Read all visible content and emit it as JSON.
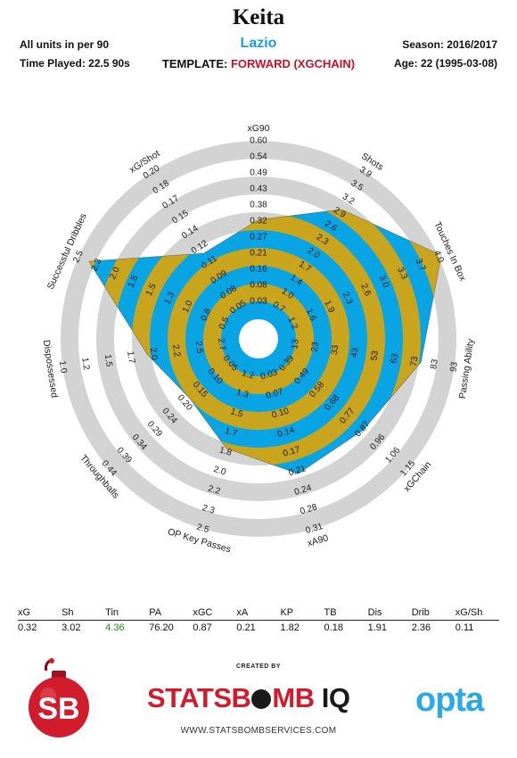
{
  "header": {
    "player": "Keita",
    "team": "Lazio",
    "units": "All units in per 90",
    "time_played": "Time Played: 22.5 90s",
    "season": "Season: 2016/2017",
    "age": "Age: 22 (1995-03-08)",
    "template_label": "TEMPLATE: ",
    "template_value": "FORWARD (XGCHAIN)"
  },
  "colors": {
    "ring_gold": "#c9a51d",
    "ring_blue": "#08a4e4",
    "ring_grey": "#d3d3d3",
    "accent_red": "#c8102e",
    "team_blue": "#1aa0e0"
  },
  "chart_data": {
    "type": "radar",
    "axes": [
      {
        "label": "xG90",
        "ticks": [
          "0.03",
          "0.08",
          "0.16",
          "0.21",
          "0.27",
          "0.32",
          "0.38",
          "0.43",
          "0.49",
          "0.54",
          "0.60"
        ],
        "value": 0.32
      },
      {
        "label": "Shots",
        "ticks": [
          "0.7",
          "1.0",
          "1.4",
          "1.7",
          "2.0",
          "2.3",
          "2.6",
          "2.9",
          "3.2",
          "3.5",
          "3.9"
        ],
        "value": 3.02
      },
      {
        "label": "Touches In Box",
        "ticks": [
          "1.2",
          "1.6",
          "1.9",
          "2.3",
          "2.6",
          "3.0",
          "3.3",
          "3.7",
          "4.0"
        ],
        "value": 4.36
      },
      {
        "label": "Passing Ability",
        "ticks": [
          "13",
          "23",
          "33",
          "43",
          "53",
          "63",
          "73",
          "83",
          "93"
        ],
        "value": 76.2
      },
      {
        "label": "xGChain",
        "ticks": [
          "0.39",
          "0.49",
          "0.58",
          "0.68",
          "0.77",
          "0.87",
          "0.96",
          "1.06",
          "1.15"
        ],
        "value": 0.87
      },
      {
        "label": "xA90",
        "ticks": [
          "0.03",
          "0.07",
          "0.10",
          "0.14",
          "0.17",
          "0.21",
          "0.24",
          "0.28",
          "0.31"
        ],
        "value": 0.21
      },
      {
        "label": "OP Key Passes",
        "ticks": [
          "1.2",
          "1.3",
          "1.5",
          "1.7",
          "1.8",
          "2.0",
          "2.2",
          "2.3",
          "2.5"
        ],
        "value": 1.82
      },
      {
        "label": "Throughballs",
        "ticks": [
          "0.05",
          "0.10",
          "0.15",
          "0.20",
          "0.24",
          "0.29",
          "0.34",
          "0.39",
          "0.44"
        ],
        "value": 0.18
      },
      {
        "label": "Dispossessed",
        "ticks": [
          "2.7",
          "2.5",
          "2.2",
          "2.0",
          "1.7",
          "1.5",
          "1.2",
          "1.0"
        ],
        "value": 1.91
      },
      {
        "label": "Successful Dribbles",
        "ticks": [
          "0.5",
          "0.8",
          "1.0",
          "1.3",
          "1.5",
          "1.8",
          "2.0",
          "2.3",
          "2.5"
        ],
        "value": 2.36
      },
      {
        "label": "xG/Shot",
        "ticks": [
          "0.05",
          "0.08",
          "0.09",
          "0.11",
          "0.12",
          "0.14",
          "0.15",
          "0.17",
          "0.18",
          "0.20"
        ],
        "value": 0.11
      }
    ],
    "legend": "none",
    "grid": true
  },
  "stats": {
    "headers": [
      "xG",
      "Sh",
      "Tin",
      "PA",
      "xGC",
      "xA",
      "KP",
      "TB",
      "Dis",
      "Drib",
      "xG/Sh"
    ],
    "values": [
      "0.32",
      "3.02",
      "4.36",
      "76.20",
      "0.87",
      "0.21",
      "1.82",
      "0.18",
      "1.91",
      "2.36",
      "0.11"
    ],
    "highlight_index": 2
  },
  "footer": {
    "created_by": "CREATED BY",
    "brand_main": "STATSB",
    "brand_tail": "MB",
    "brand_iq": " IQ",
    "logo_initials": "SB",
    "website": "WWW.STATSBOMBSERVICES.COM",
    "partner": "opta"
  }
}
